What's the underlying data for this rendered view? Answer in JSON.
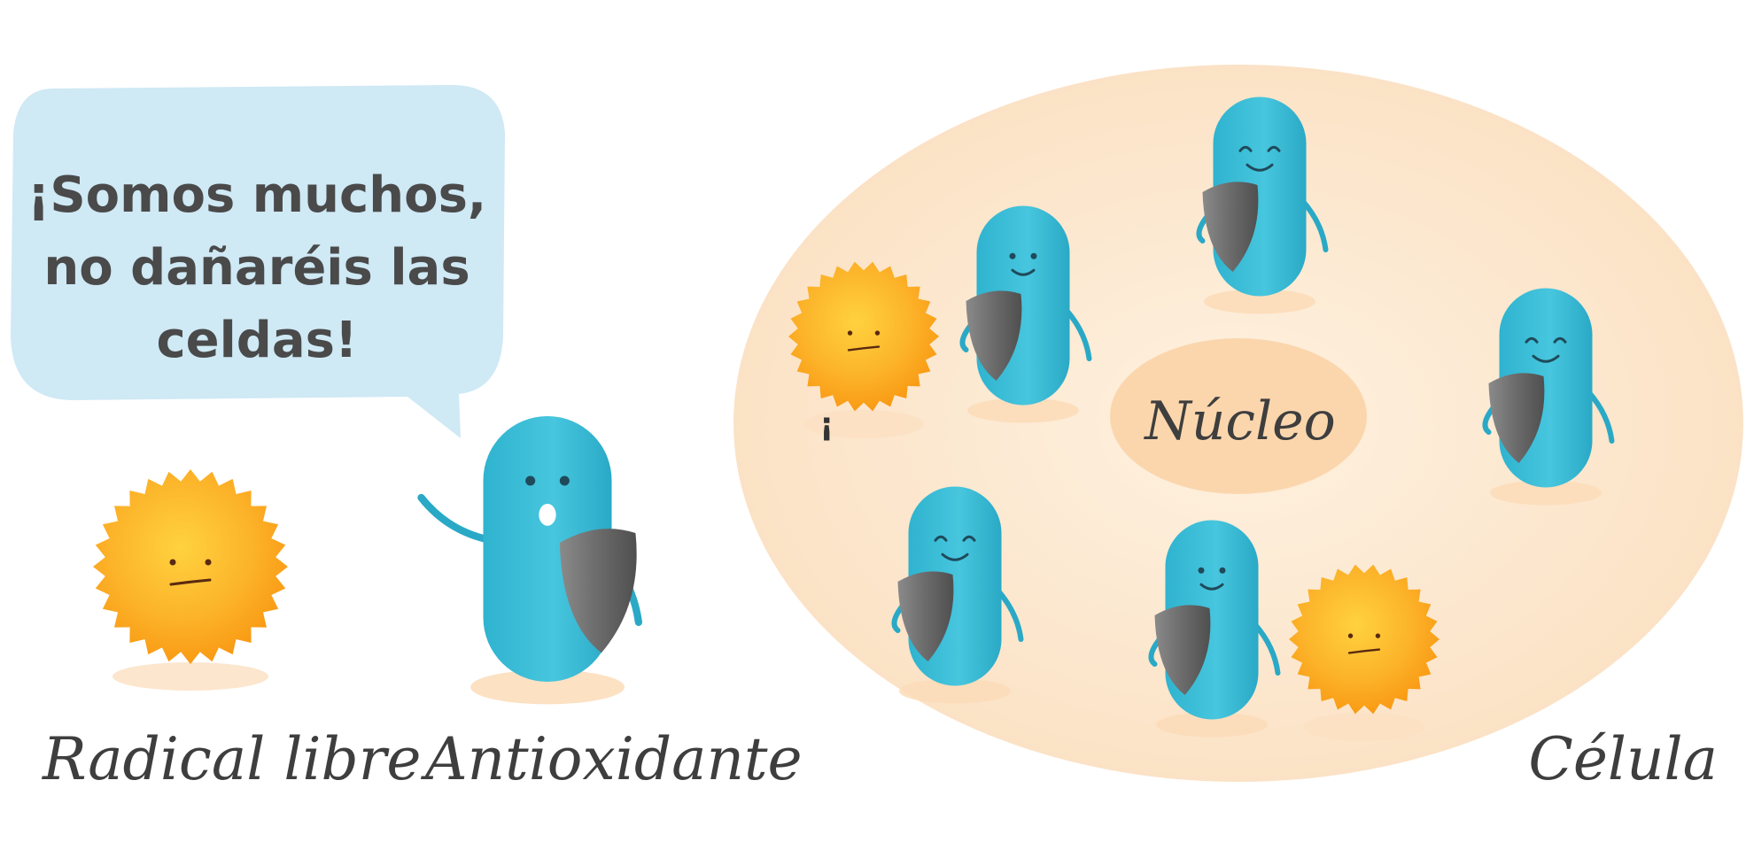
{
  "speech_bubble": {
    "lines": [
      "¡Somos muchos,",
      "no dañaréis las",
      "celdas!"
    ]
  },
  "labels": {
    "free_radical": "Radical libre",
    "antioxidant": "Antioxidante",
    "cell": "Célula",
    "nucleus": "Núcleo"
  },
  "exclamation_mark": "¡",
  "colors": {
    "bubble": "#cfe9f5",
    "cell": "#fde8cf",
    "nucleus": "#fbd6ad",
    "antioxidant": "#3cc0d8",
    "free_radical": "#fba41c",
    "shield": "#6d6d6d",
    "text": "#4a4a4a"
  }
}
